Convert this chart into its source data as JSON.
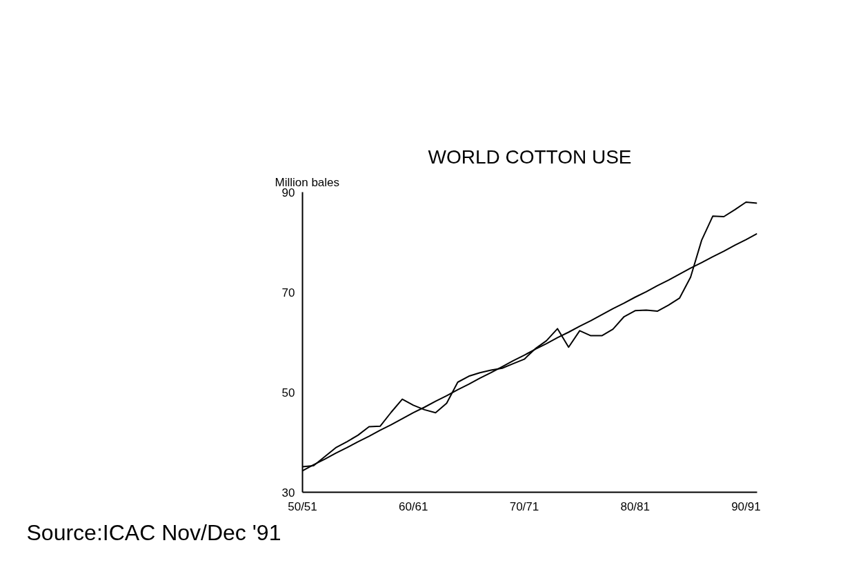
{
  "chart_data": {
    "type": "line",
    "title": "WORLD COTTON USE",
    "ylabel": "Million bales",
    "categories": [
      "50/51",
      null,
      null,
      null,
      null,
      null,
      null,
      null,
      null,
      null,
      "60/61",
      null,
      null,
      null,
      null,
      null,
      null,
      null,
      null,
      null,
      "70/71",
      null,
      null,
      null,
      null,
      null,
      null,
      null,
      null,
      null,
      "80/81",
      null,
      null,
      null,
      null,
      null,
      null,
      null,
      null,
      null,
      "90/91",
      null
    ],
    "series": [
      {
        "color": "#000000",
        "values": [
          35.1,
          35.3,
          37.1,
          38.9,
          40.1,
          41.4,
          43.1,
          43.2,
          46.0,
          48.6,
          47.4,
          46.5,
          45.9,
          47.8,
          52.0,
          53.2,
          53.9,
          54.4,
          54.8,
          55.7,
          56.6,
          58.7,
          60.3,
          62.7,
          59.0,
          62.3,
          61.3,
          61.3,
          62.6,
          65.1,
          66.3,
          66.4,
          66.2,
          67.4,
          68.8,
          73.0,
          80.4,
          85.2,
          85.1,
          86.5,
          88.0,
          87.8
        ]
      },
      {
        "color": "#000000",
        "values": [
          34.3,
          35.5,
          36.6,
          37.8,
          38.9,
          40.1,
          41.2,
          42.4,
          43.5,
          44.7,
          45.9,
          47.0,
          48.2,
          49.3,
          50.5,
          51.6,
          52.8,
          53.9,
          55.1,
          56.3,
          57.4,
          58.6,
          59.7,
          60.9,
          62.0,
          63.2,
          64.3,
          65.5,
          66.7,
          67.8,
          69.0,
          70.1,
          71.3,
          72.4,
          73.6,
          74.8,
          75.9,
          77.1,
          78.2,
          79.4,
          80.5,
          81.7
        ]
      }
    ],
    "ylim": [
      30,
      90
    ],
    "yticks": [
      30,
      50,
      70,
      90
    ],
    "grid": false,
    "line_style": "solid",
    "marker": "none",
    "annotations": [
      "Source:ICAC Nov/Dec '91"
    ]
  }
}
